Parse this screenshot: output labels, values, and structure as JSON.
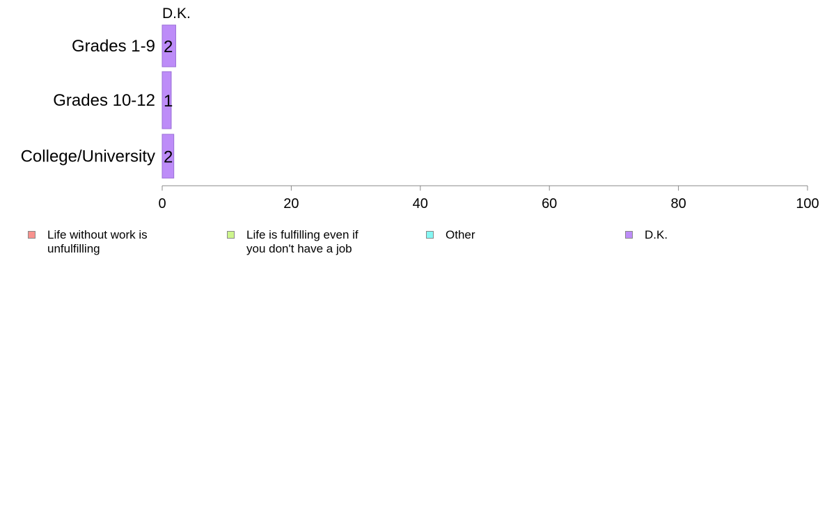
{
  "chart_data": {
    "type": "bar",
    "orientation": "horizontal",
    "stacked": true,
    "categories": [
      "Grades 1-9",
      "Grades 10-12",
      "College/University"
    ],
    "series": [
      {
        "name": "Life without work is unfulfilling",
        "color": "#f8928e",
        "values": [
          0,
          0,
          0
        ]
      },
      {
        "name": "Life is fulfilling even if you don't have a job",
        "color": "#cdf58c",
        "values": [
          0,
          0,
          0
        ]
      },
      {
        "name": "Other",
        "color": "#85f7f3",
        "values": [
          0,
          0,
          0
        ]
      },
      {
        "name": "D.K.",
        "color": "#bd8cf8",
        "values": [
          2.1,
          1.4,
          1.8
        ]
      }
    ],
    "data_labels": [
      "2",
      "1",
      "2"
    ],
    "top_label": "D.K.",
    "xlim": [
      0,
      100
    ],
    "xticks": [
      "0",
      "20",
      "40",
      "60",
      "80",
      "100"
    ],
    "grid": false,
    "legend_position": "bottom"
  }
}
